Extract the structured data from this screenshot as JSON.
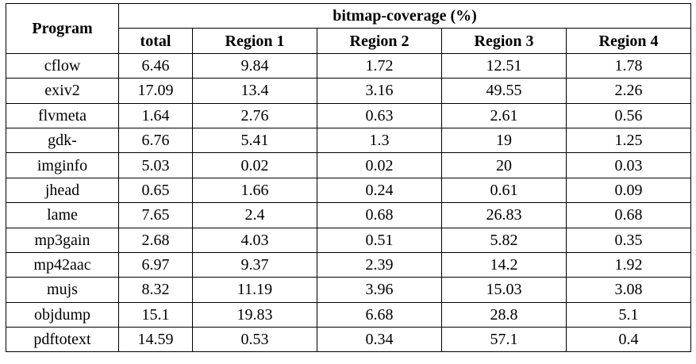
{
  "table": {
    "header": {
      "program": "Program",
      "group": "bitmap-coverage (%)",
      "columns": [
        "total",
        "Region 1",
        "Region 2",
        "Region 3",
        "Region 4"
      ]
    },
    "rows": [
      {
        "program": "cflow",
        "values": [
          "6.46",
          "9.84",
          "1.72",
          "12.51",
          "1.78"
        ]
      },
      {
        "program": "exiv2",
        "values": [
          "17.09",
          "13.4",
          "3.16",
          "49.55",
          "2.26"
        ]
      },
      {
        "program": "flvmeta",
        "values": [
          "1.64",
          "2.76",
          "0.63",
          "2.61",
          "0.56"
        ]
      },
      {
        "program": "gdk-",
        "values": [
          "6.76",
          "5.41",
          "1.3",
          "19",
          "1.25"
        ]
      },
      {
        "program": "imginfo",
        "values": [
          "5.03",
          "0.02",
          "0.02",
          "20",
          "0.03"
        ]
      },
      {
        "program": "jhead",
        "values": [
          "0.65",
          "1.66",
          "0.24",
          "0.61",
          "0.09"
        ]
      },
      {
        "program": "lame",
        "values": [
          "7.65",
          "2.4",
          "0.68",
          "26.83",
          "0.68"
        ]
      },
      {
        "program": "mp3gain",
        "values": [
          "2.68",
          "4.03",
          "0.51",
          "5.82",
          "0.35"
        ]
      },
      {
        "program": "mp42aac",
        "values": [
          "6.97",
          "9.37",
          "2.39",
          "14.2",
          "1.92"
        ]
      },
      {
        "program": "mujs",
        "values": [
          "8.32",
          "11.19",
          "3.96",
          "15.03",
          "3.08"
        ]
      },
      {
        "program": "objdump",
        "values": [
          "15.1",
          "19.83",
          "6.68",
          "28.8",
          "5.1"
        ]
      },
      {
        "program": "pdftotext",
        "values": [
          "14.59",
          "0.53",
          "0.34",
          "57.1",
          "0.4"
        ]
      }
    ]
  }
}
